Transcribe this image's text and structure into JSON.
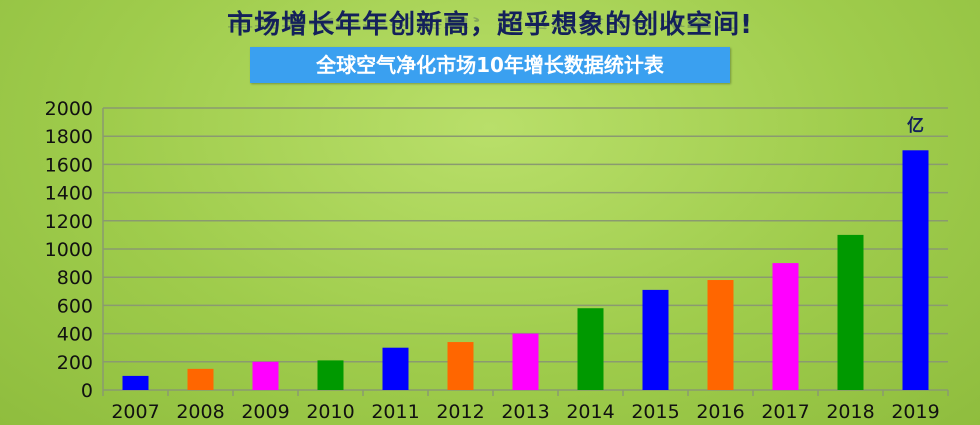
{
  "headline": "市场增长年年创新高，超乎想象的创收空间!",
  "chart_data": {
    "type": "bar",
    "title": "全球空气净化市场10年增长数据统计表",
    "unit_label": "亿",
    "categories": [
      "2007",
      "2008",
      "2009",
      "2010",
      "2011",
      "2012",
      "2013",
      "2014",
      "2015",
      "2016",
      "2017",
      "2018",
      "2019"
    ],
    "values": [
      100,
      150,
      200,
      210,
      300,
      340,
      400,
      580,
      710,
      780,
      900,
      1100,
      1700
    ],
    "colors": [
      "#0000ff",
      "#ff6600",
      "#ff00ff",
      "#009900",
      "#0000ff",
      "#ff6600",
      "#ff00ff",
      "#009900",
      "#0000ff",
      "#ff6600",
      "#ff00ff",
      "#009900",
      "#0000ff"
    ],
    "ylim": [
      0,
      2000
    ],
    "yticks": [
      0,
      200,
      400,
      600,
      800,
      1000,
      1200,
      1400,
      1600,
      1800,
      2000
    ],
    "grid": true,
    "legend": "none"
  }
}
